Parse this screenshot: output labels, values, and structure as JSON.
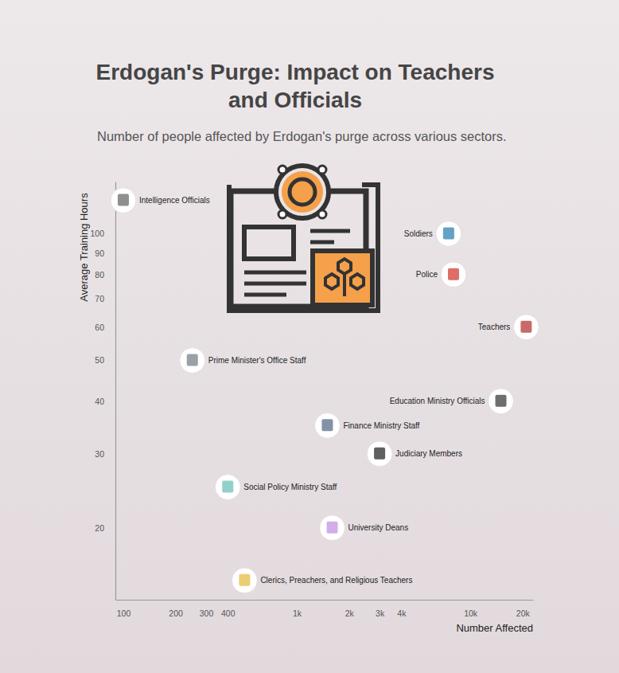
{
  "chart_data": {
    "type": "scatter",
    "title": "Erdogan's Purge: Impact on Teachers and Officials",
    "subtitle": "Number of people affected by Erdogan's purge across various sectors.",
    "x_label": "Number Affected",
    "y_label": "Average Training Hours",
    "labels": [
      "Intelligence Officials",
      "Soldiers",
      "Police",
      "Teachers",
      "Prime Minister's Office Staff",
      "Education Ministry Officials",
      "Finance Ministry Staff",
      "Judiciary Members",
      "Social Policy Ministry Staff",
      "University Deans",
      "Clerics, Preachers, and Religious Teachers"
    ],
    "x": [
      100,
      7500,
      8000,
      21000,
      250,
      15000,
      1500,
      3000,
      400,
      1600,
      500
    ],
    "values": [
      120,
      100,
      80,
      60,
      50,
      40,
      35,
      30,
      25,
      20,
      15
    ],
    "xlim": [
      90,
      23000
    ],
    "ylim": [
      13.5,
      133
    ],
    "xticks": [
      100,
      200,
      300,
      400,
      {
        "value": 1000,
        "label": "1k"
      },
      {
        "value": 2000,
        "label": "2k"
      },
      {
        "value": 3000,
        "label": "3k"
      },
      {
        "value": 4000,
        "label": "4k"
      },
      {
        "value": 10000,
        "label": "10k"
      },
      {
        "value": 20000,
        "label": "20k"
      }
    ],
    "yticks": [
      20,
      30,
      40,
      50,
      60,
      70,
      80,
      90,
      100
    ],
    "log": true,
    "grid": false,
    "marker": "circle",
    "color": "#ffffff"
  }
}
